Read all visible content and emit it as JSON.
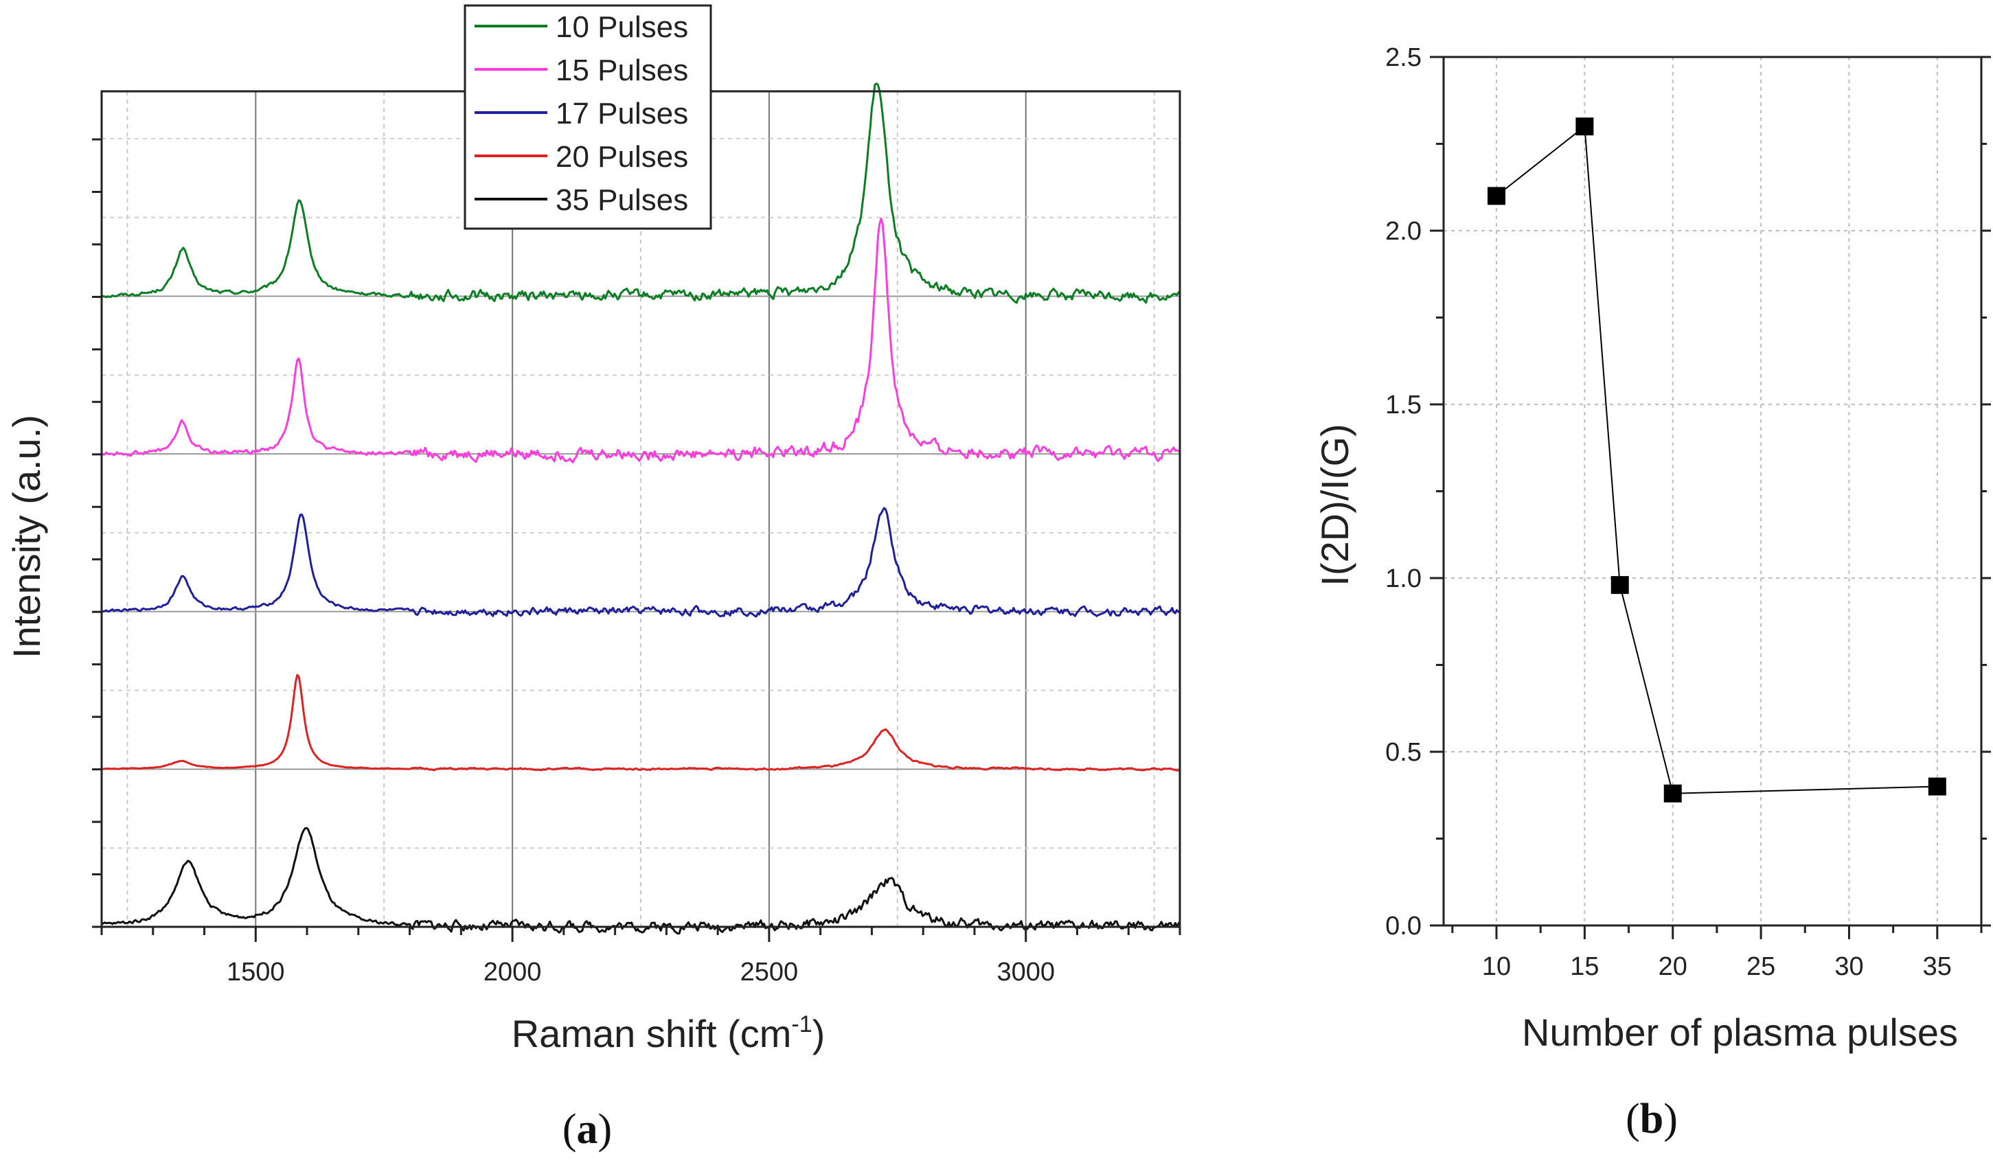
{
  "panels": {
    "a": {
      "label_open": "(",
      "label_letter": "a",
      "label_close": ")"
    },
    "b": {
      "label_open": "(",
      "label_letter": "b",
      "label_close": ")"
    }
  },
  "chart_data": [
    {
      "type": "line",
      "title": "",
      "xlabel_main": "Raman shift (cm",
      "xlabel_sup": "-1",
      "xlabel_end": ")",
      "ylabel": "Intensity (a.u.)",
      "xlim": [
        1200,
        3300
      ],
      "xticks": [
        "1500",
        "2000",
        "2500",
        "3000"
      ],
      "xtick_values": [
        1500,
        2000,
        2500,
        3000
      ],
      "ylim": [
        0,
        5.3
      ],
      "yticks_labeled": false,
      "grid": true,
      "legend_position": "top-center",
      "series": [
        {
          "name": "10 Pulses",
          "color": "#0b7d23",
          "offset": 4.0,
          "peaks": [
            [
              1358,
              0.3,
              18
            ],
            [
              1585,
              0.6,
              20
            ],
            [
              2710,
              1.35,
              25
            ]
          ],
          "noise": 0.05
        },
        {
          "name": "15 Pulses",
          "color": "#ff3ddf",
          "offset": 3.0,
          "peaks": [
            [
              1357,
              0.2,
              15
            ],
            [
              1583,
              0.62,
              14
            ],
            [
              2718,
              1.5,
              18
            ]
          ],
          "noise": 0.06
        },
        {
          "name": "17 Pulses",
          "color": "#1f1f9c",
          "offset": 2.0,
          "peaks": [
            [
              1358,
              0.22,
              18
            ],
            [
              1589,
              0.62,
              18
            ],
            [
              2722,
              0.65,
              25
            ]
          ],
          "noise": 0.04
        },
        {
          "name": "20 Pulses",
          "color": "#dd2222",
          "offset": 1.0,
          "peaks": [
            [
              1355,
              0.05,
              25
            ],
            [
              1582,
              0.6,
              14
            ],
            [
              2725,
              0.25,
              30
            ]
          ],
          "noise": 0.01
        },
        {
          "name": "35 Pulses",
          "color": "#111111",
          "offset": 0.0,
          "peaks": [
            [
              1368,
              0.4,
              30
            ],
            [
              1598,
              0.62,
              30
            ],
            [
              2730,
              0.3,
              40
            ]
          ],
          "noise": 0.05
        }
      ]
    },
    {
      "type": "line",
      "title": "",
      "xlabel": "Number of plasma pulses",
      "ylabel": "I(2D)/I(G)",
      "xlim": [
        7,
        37.5
      ],
      "ylim": [
        0,
        2.5
      ],
      "xticks": [
        "10",
        "15",
        "20",
        "25",
        "30",
        "35"
      ],
      "xtick_values": [
        10,
        15,
        20,
        25,
        30,
        35
      ],
      "yticks": [
        "0.0",
        "0.5",
        "1.0",
        "1.5",
        "2.0",
        "2.5"
      ],
      "ytick_values": [
        0,
        0.5,
        1.0,
        1.5,
        2.0,
        2.5
      ],
      "grid": true,
      "series": [
        {
          "name": "I(2D)/I(G)",
          "x": [
            10,
            15,
            17,
            20,
            35
          ],
          "y": [
            2.1,
            2.3,
            0.98,
            0.38,
            0.4
          ],
          "color": "#000000"
        }
      ]
    }
  ]
}
